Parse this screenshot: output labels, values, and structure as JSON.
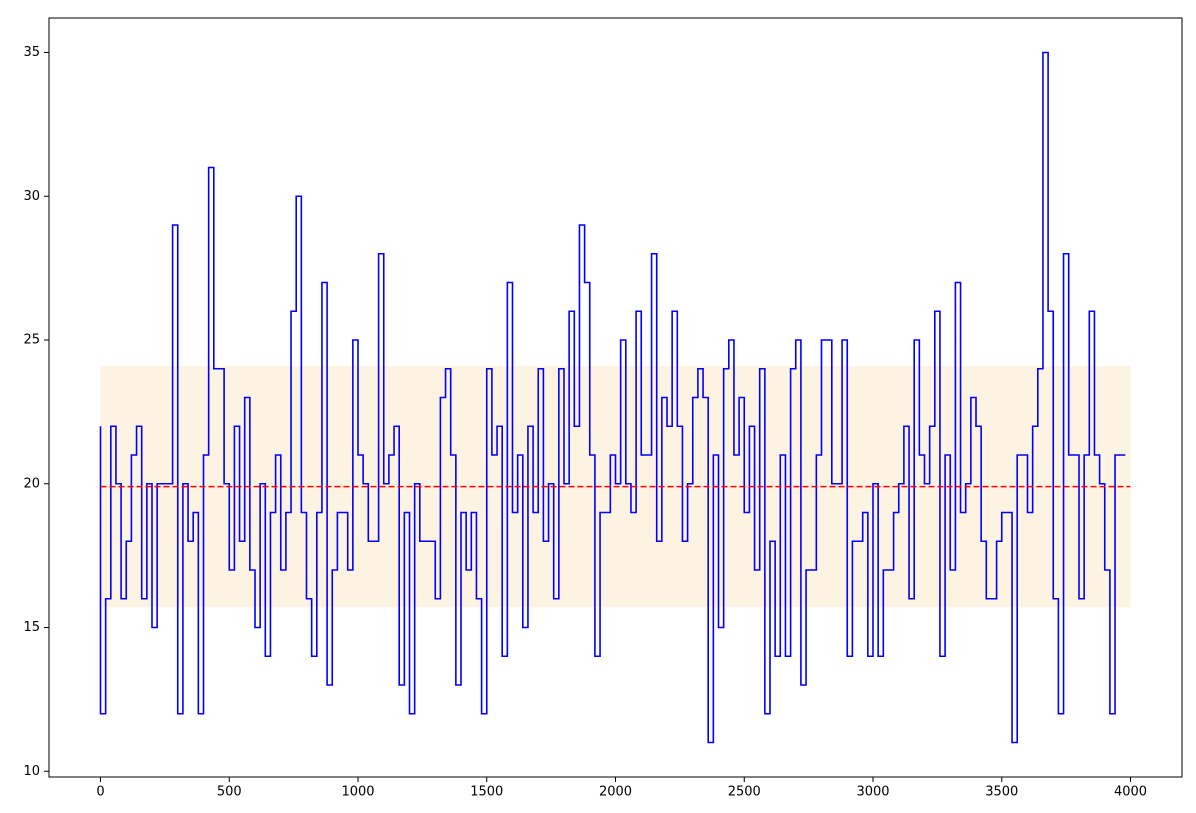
{
  "chart_data": {
    "type": "line",
    "drawstyle": "steps-pre",
    "x": [
      0,
      20,
      40,
      60,
      80,
      100,
      120,
      140,
      160,
      180,
      200,
      220,
      240,
      260,
      280,
      300,
      320,
      340,
      360,
      380,
      400,
      420,
      440,
      460,
      480,
      500,
      520,
      540,
      560,
      580,
      600,
      620,
      640,
      660,
      680,
      700,
      720,
      740,
      760,
      780,
      800,
      820,
      840,
      860,
      880,
      900,
      920,
      940,
      960,
      980,
      1000,
      1020,
      1040,
      1060,
      1080,
      1100,
      1120,
      1140,
      1160,
      1180,
      1200,
      1220,
      1240,
      1260,
      1280,
      1300,
      1320,
      1340,
      1360,
      1380,
      1400,
      1420,
      1440,
      1460,
      1480,
      1500,
      1520,
      1540,
      1560,
      1580,
      1600,
      1620,
      1640,
      1660,
      1680,
      1700,
      1720,
      1740,
      1760,
      1780,
      1800,
      1820,
      1840,
      1860,
      1880,
      1900,
      1920,
      1940,
      1960,
      1980,
      2000,
      2020,
      2040,
      2060,
      2080,
      2100,
      2120,
      2140,
      2160,
      2180,
      2200,
      2220,
      2240,
      2260,
      2280,
      2300,
      2320,
      2340,
      2360,
      2380,
      2400,
      2420,
      2440,
      2460,
      2480,
      2500,
      2520,
      2540,
      2560,
      2580,
      2600,
      2620,
      2640,
      2660,
      2680,
      2700,
      2720,
      2740,
      2760,
      2780,
      2800,
      2820,
      2840,
      2860,
      2880,
      2900,
      2920,
      2940,
      2960,
      2980,
      3000,
      3020,
      3040,
      3060,
      3080,
      3100,
      3120,
      3140,
      3160,
      3180,
      3200,
      3220,
      3240,
      3260,
      3280,
      3300,
      3320,
      3340,
      3360,
      3380,
      3400,
      3420,
      3440,
      3460,
      3480,
      3500,
      3520,
      3540,
      3560,
      3580,
      3600,
      3620,
      3640,
      3660,
      3680,
      3700,
      3720,
      3740,
      3760,
      3780,
      3800,
      3820,
      3840,
      3860,
      3880,
      3900,
      3920,
      3940,
      3960,
      3980
    ],
    "series": [
      {
        "color": "#0000ff",
        "values": [
          22,
          12,
          16,
          22,
          20,
          16,
          18,
          21,
          22,
          16,
          20,
          15,
          20,
          20,
          20,
          29,
          12,
          20,
          18,
          19,
          12,
          21,
          31,
          24,
          24,
          20,
          17,
          22,
          18,
          23,
          17,
          15,
          20,
          14,
          19,
          21,
          17,
          19,
          26,
          30,
          19,
          16,
          14,
          19,
          27,
          13,
          17,
          19,
          19,
          17,
          25,
          21,
          20,
          18,
          18,
          28,
          20,
          21,
          22,
          13,
          19,
          12,
          20,
          18,
          18,
          18,
          16,
          23,
          24,
          21,
          13,
          19,
          17,
          19,
          16,
          12,
          24,
          21,
          22,
          14,
          27,
          19,
          21,
          15,
          22,
          19,
          24,
          18,
          20,
          16,
          24,
          20,
          26,
          22,
          29,
          27,
          21,
          14,
          19,
          19,
          21,
          20,
          25,
          20,
          19,
          26,
          21,
          21,
          28,
          18,
          23,
          22,
          26,
          22,
          18,
          20,
          23,
          24,
          23,
          11,
          21,
          15,
          24,
          25,
          21,
          23,
          19,
          22,
          17,
          24,
          12,
          18,
          14,
          21,
          14,
          24,
          25,
          13,
          17,
          17,
          21,
          25,
          25,
          20,
          20,
          25,
          14,
          18,
          18,
          19,
          14,
          20,
          14,
          17,
          17,
          19,
          20,
          22,
          16,
          25,
          21,
          20,
          22,
          26,
          14,
          21,
          17,
          27,
          19,
          20,
          23,
          22,
          18,
          16,
          16,
          18,
          19,
          19,
          11,
          21,
          21,
          19,
          22,
          24,
          35,
          26,
          16,
          12,
          28,
          21,
          21,
          16,
          21,
          26,
          21,
          20,
          17,
          12,
          21,
          21
        ]
      }
    ],
    "mean_line": {
      "value": 19.9,
      "xrange": [
        0,
        4000
      ],
      "color": "#ff0000",
      "dashed": true
    },
    "band": {
      "low": 15.7,
      "high": 24.1,
      "xrange": [
        0,
        4000
      ],
      "color": "#fdf3e3"
    },
    "xlim": [
      -200,
      4200
    ],
    "ylim": [
      9.8,
      36.2
    ],
    "xticks": [
      0,
      500,
      1000,
      1500,
      2000,
      2500,
      3000,
      3500,
      4000
    ],
    "yticks": [
      10,
      15,
      20,
      25,
      30,
      35
    ]
  }
}
